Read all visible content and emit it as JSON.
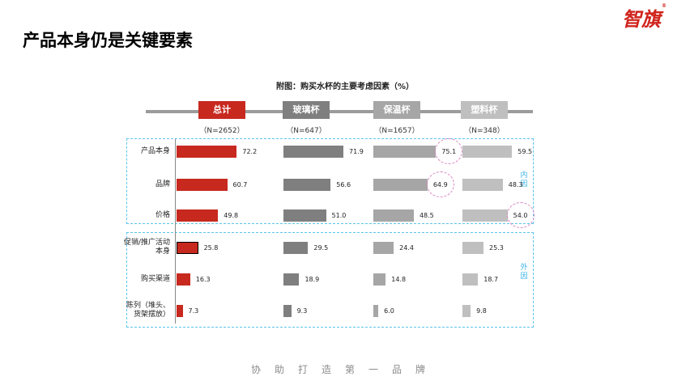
{
  "page": {
    "title": "产品本身仍是关键要素",
    "logo": "智旗",
    "logo_mark": "®",
    "footer": "协助打造第一品牌"
  },
  "groups": [
    {
      "label": "内因",
      "color": "#39b3e4"
    },
    {
      "label": "外因",
      "color": "#39b3e4"
    }
  ],
  "colors": {
    "总计": "#c7291f",
    "玻璃杯": "#7f7f7f",
    "保温杯": "#a6a6a6",
    "塑料杯": "#bfbfbf",
    "box_border": "#5bc4ec",
    "highlight": "#d986c2"
  },
  "chart_data": {
    "type": "bar",
    "orientation": "horizontal",
    "title": "附图：购买水杯的主要考虑因素（%）",
    "categories": [
      "产品本身",
      "品牌",
      "价格",
      "促销/推广活动本身",
      "购买渠道",
      "陈列（堆头、货架摆放）"
    ],
    "series": [
      {
        "name": "总计",
        "n": "（N=2652）",
        "values": [
          72.2,
          60.7,
          49.8,
          25.8,
          16.3,
          7.3
        ]
      },
      {
        "name": "玻璃杯",
        "n": "（N=647）",
        "values": [
          71.9,
          56.6,
          51.0,
          29.5,
          18.9,
          9.3
        ]
      },
      {
        "name": "保温杯",
        "n": "（N=1657）",
        "values": [
          75.1,
          64.9,
          48.5,
          24.4,
          14.8,
          6.0
        ]
      },
      {
        "name": "塑料杯",
        "n": "（N=348）",
        "values": [
          59.5,
          48.3,
          54.0,
          25.3,
          18.7,
          9.8
        ]
      }
    ],
    "highlights": [
      {
        "series": "保温杯",
        "category": "产品本身"
      },
      {
        "series": "保温杯",
        "category": "品牌"
      },
      {
        "series": "塑料杯",
        "category": "价格"
      }
    ],
    "xlim": [
      0,
      100
    ],
    "grid": false,
    "legend": "top"
  }
}
